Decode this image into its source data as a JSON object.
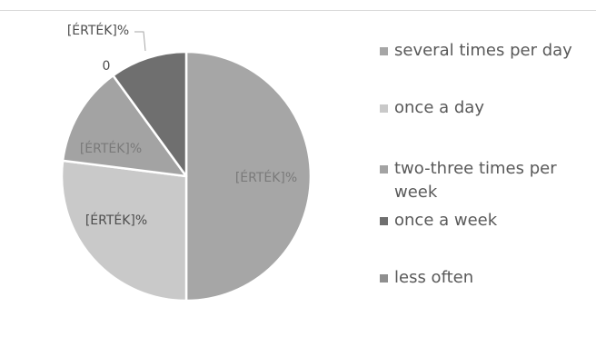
{
  "chart_data": {
    "type": "pie",
    "categories": [
      "several times per day",
      "once a day",
      "two-three times per week",
      "once a week",
      "less often"
    ],
    "values": [
      50,
      27,
      13,
      10,
      0
    ],
    "colors": [
      "#a6a6a6",
      "#c9c9c9",
      "#a3a3a3",
      "#6f6f6f",
      "#8f8f8f"
    ],
    "data_labels": [
      "[ÉRTÉK]%",
      "[ÉRTÉK]%",
      "[ÉRTÉK]%",
      "0",
      "[ÉRTÉK]%"
    ],
    "legend": "right"
  }
}
